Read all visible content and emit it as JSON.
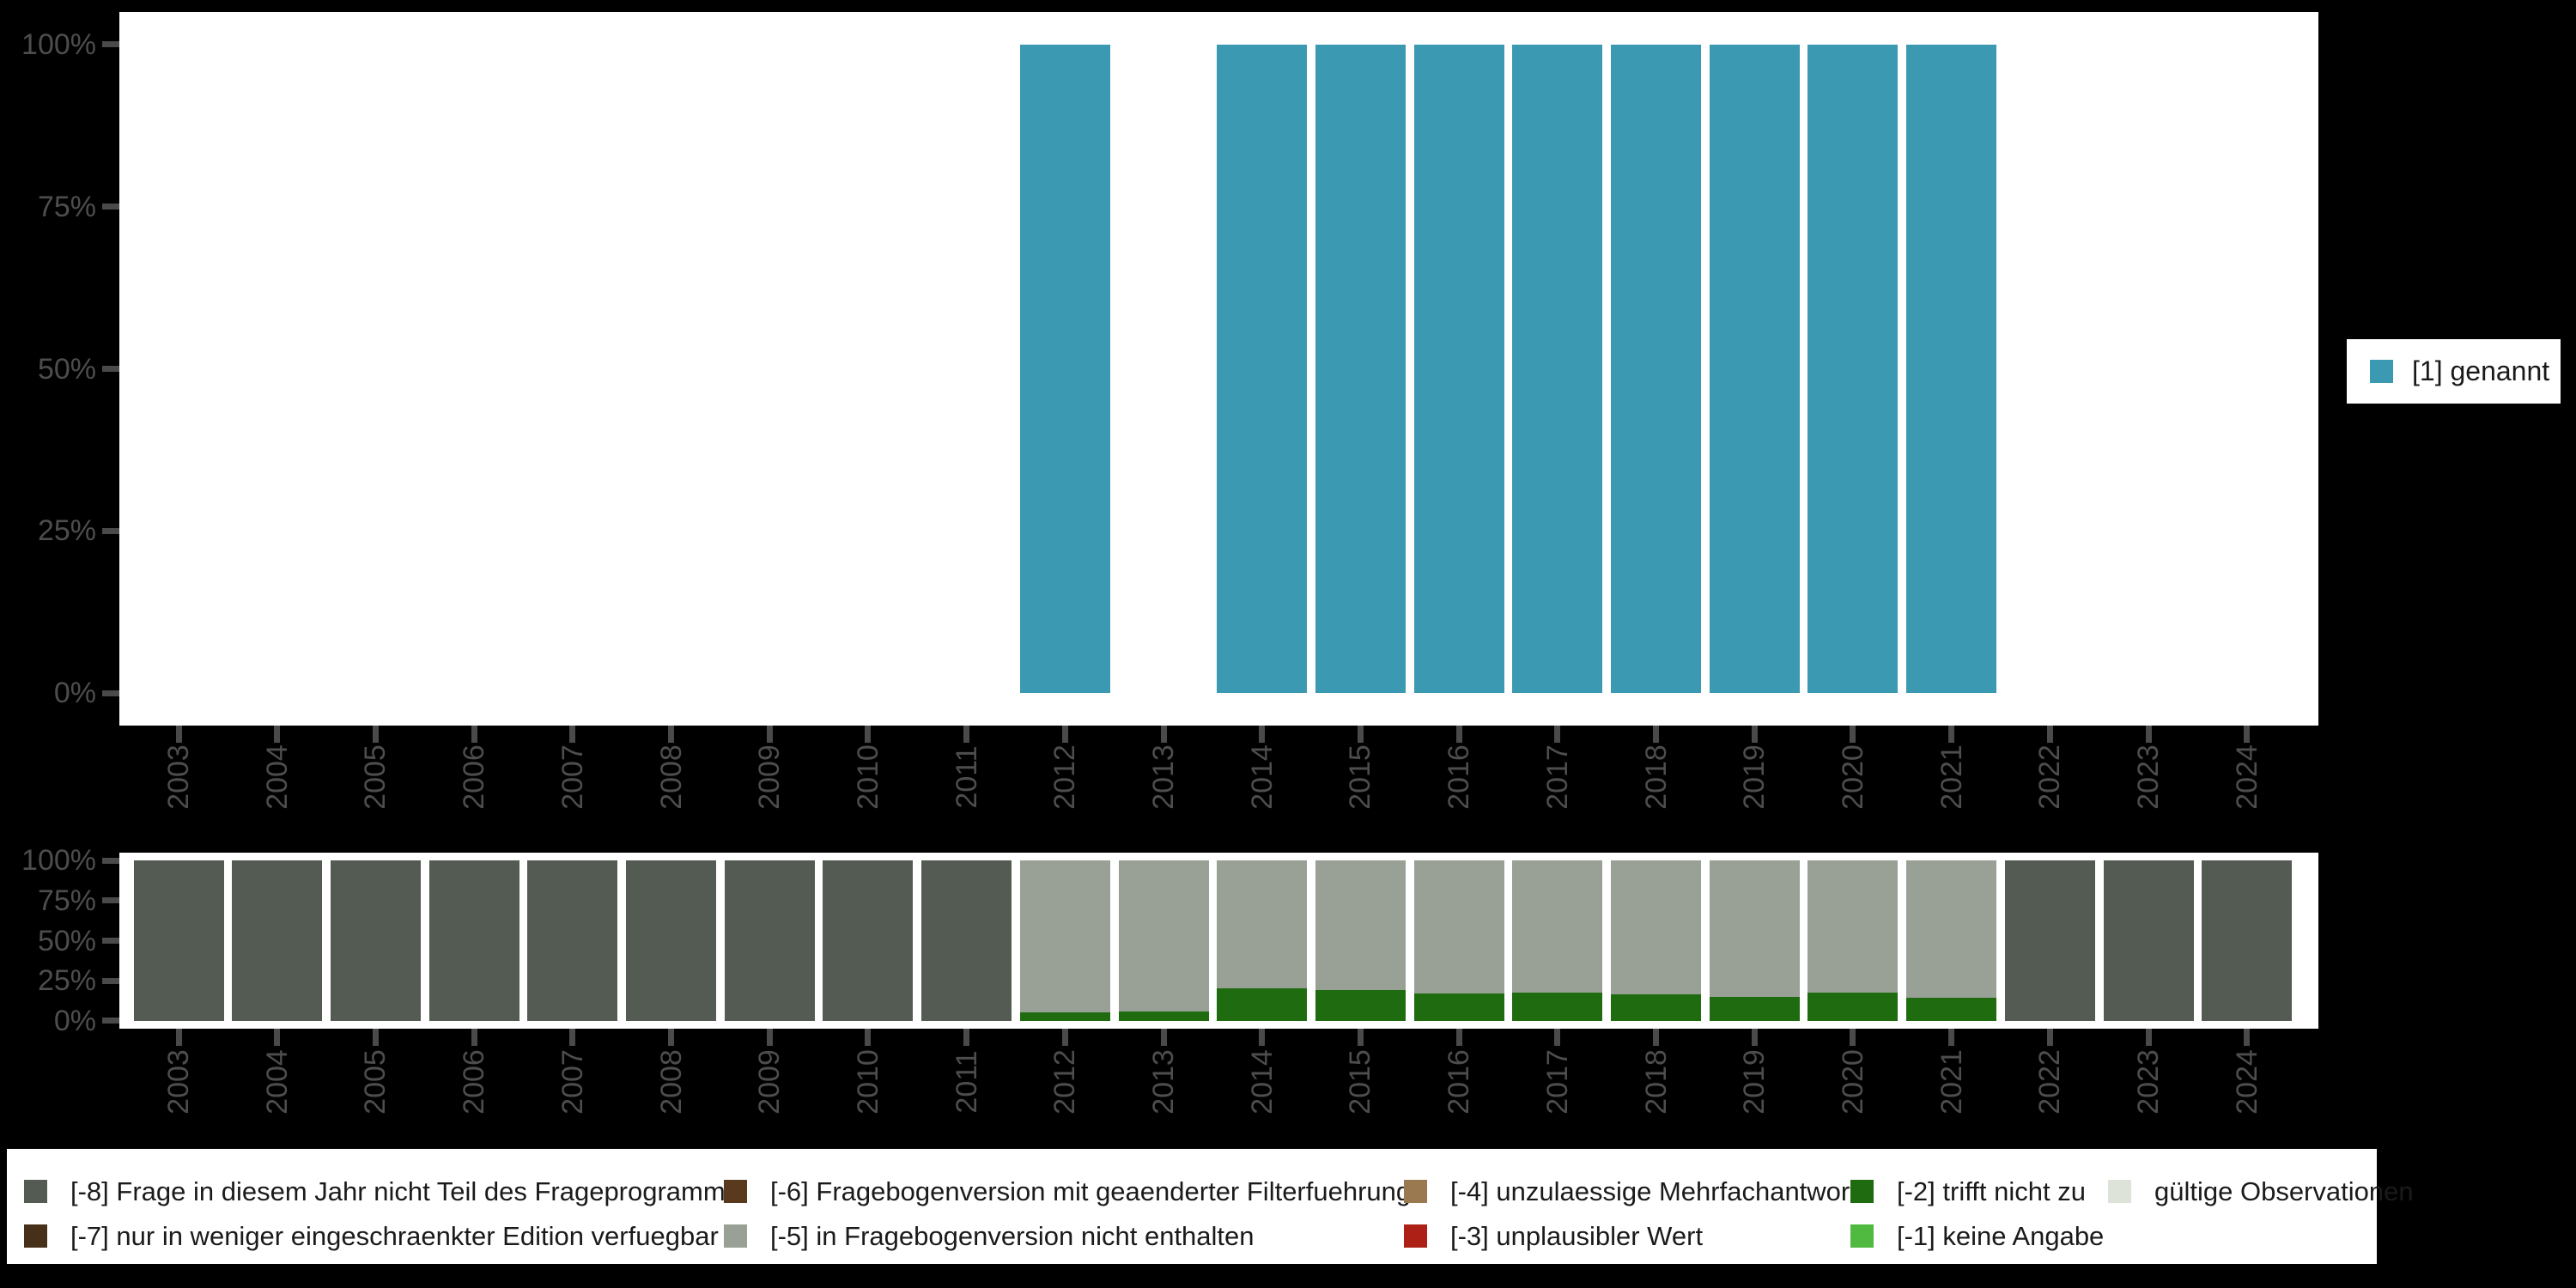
{
  "background": "#000000",
  "axis": {
    "text_color": "#4D4D4D",
    "tick_color": "#4A4A4A",
    "y_tick_labels": [
      "0%",
      "25%",
      "50%",
      "75%",
      "100%"
    ],
    "y_tick_values": [
      0,
      25,
      50,
      75,
      100
    ]
  },
  "years": [
    "2003",
    "2004",
    "2005",
    "2006",
    "2007",
    "2008",
    "2009",
    "2010",
    "2011",
    "2012",
    "2013",
    "2014",
    "2015",
    "2016",
    "2017",
    "2018",
    "2019",
    "2020",
    "2021",
    "2022",
    "2023",
    "2024"
  ],
  "top_legend": {
    "entries": [
      {
        "label": "[1] genannt",
        "color": "#3B9AB2"
      }
    ]
  },
  "missing_legend": {
    "entries": [
      {
        "label": "[-8] Frage in diesem Jahr nicht Teil des Frageprogramms",
        "color": "#545B52"
      },
      {
        "label": "[-7] nur in weniger eingeschraenkter Edition verfuegbar",
        "color": "#47301A"
      },
      {
        "label": "[-6] Fragebogenversion mit geaenderter Filterfuehrung",
        "color": "#593A1D"
      },
      {
        "label": "[-5] in Fragebogenversion nicht enthalten",
        "color": "#99A096"
      },
      {
        "label": "[-4] unzulaessige Mehrfachantwort",
        "color": "#9A7950"
      },
      {
        "label": "[-3] unplausibler Wert",
        "color": "#AC2015"
      },
      {
        "label": "[-2] trifft nicht zu",
        "color": "#1F6C10"
      },
      {
        "label": "[-1] keine Angabe",
        "color": "#4FBA3F"
      },
      {
        "label": "gültige Observationen",
        "color": "#DEE3DA"
      }
    ]
  },
  "chart_data": [
    {
      "id": "valid-values-distribution",
      "type": "bar",
      "categories": [
        "2003",
        "2004",
        "2005",
        "2006",
        "2007",
        "2008",
        "2009",
        "2010",
        "2011",
        "2012",
        "2013",
        "2014",
        "2015",
        "2016",
        "2017",
        "2018",
        "2019",
        "2020",
        "2021",
        "2022",
        "2023",
        "2024"
      ],
      "ylim": [
        0,
        100
      ],
      "y_tick_labels": [
        "0%",
        "25%",
        "50%",
        "75%",
        "100%"
      ],
      "grid": false,
      "legend_position": "right",
      "series": [
        {
          "name": "[1] genannt",
          "color": "#3B9AB2",
          "values": [
            null,
            null,
            null,
            null,
            null,
            null,
            null,
            null,
            null,
            100,
            null,
            100,
            100,
            100,
            100,
            100,
            100,
            100,
            100,
            null,
            null,
            null
          ]
        }
      ]
    },
    {
      "id": "missing-values-distribution",
      "type": "stacked-bar",
      "categories": [
        "2003",
        "2004",
        "2005",
        "2006",
        "2007",
        "2008",
        "2009",
        "2010",
        "2011",
        "2012",
        "2013",
        "2014",
        "2015",
        "2016",
        "2017",
        "2018",
        "2019",
        "2020",
        "2021",
        "2022",
        "2023",
        "2024"
      ],
      "ylim": [
        0,
        100
      ],
      "y_tick_labels": [
        "0%",
        "25%",
        "50%",
        "75%",
        "100%"
      ],
      "grid": false,
      "series": [
        {
          "name": "[-2] trifft nicht zu",
          "color": "#1F6C10",
          "values": [
            0,
            0,
            0,
            0,
            0,
            0,
            0,
            0,
            0,
            5,
            5.5,
            20,
            19,
            17,
            17.5,
            16.5,
            15,
            17.5,
            14.5,
            0,
            0,
            0
          ]
        },
        {
          "name": "[-5] in Fragebogenversion nicht enthalten",
          "color": "#99A096",
          "values": [
            0,
            0,
            0,
            0,
            0,
            0,
            0,
            0,
            0,
            95,
            94.5,
            80,
            81,
            83,
            82.5,
            83.5,
            85,
            82.5,
            85.5,
            0,
            0,
            0
          ]
        },
        {
          "name": "[-8] Frage in diesem Jahr nicht Teil des Frageprogramms",
          "color": "#545B52",
          "values": [
            100,
            100,
            100,
            100,
            100,
            100,
            100,
            100,
            100,
            0,
            0,
            0,
            0,
            0,
            0,
            0,
            0,
            0,
            0,
            100,
            100,
            100
          ]
        }
      ]
    }
  ]
}
